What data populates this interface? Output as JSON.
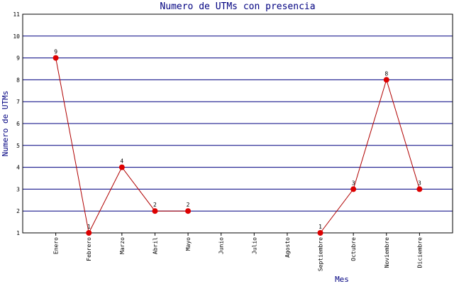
{
  "chart_data": {
    "type": "line",
    "title": "Numero de UTMs con presencia",
    "x_label": "Mes",
    "y_label": "Numero de UTMs",
    "categories": [
      "Enero",
      "Febrero",
      "Marzo",
      "Abril",
      "Mayo",
      "Junio",
      "Julio",
      "Agosto",
      "Septiembre",
      "Octubre",
      "Noviembre",
      "Diciembre"
    ],
    "series": [
      {
        "name": "UTMs",
        "line_color": "#b00000",
        "marker_color": "#dd0000",
        "values": [
          9,
          1,
          4,
          2,
          2,
          null,
          null,
          null,
          1,
          3,
          8,
          3
        ]
      }
    ],
    "ylim": [
      1,
      11
    ],
    "yticks": [
      1,
      2,
      3,
      4,
      5,
      6,
      7,
      8,
      9,
      10,
      11
    ],
    "grid": true,
    "grid_color": "#000080"
  }
}
